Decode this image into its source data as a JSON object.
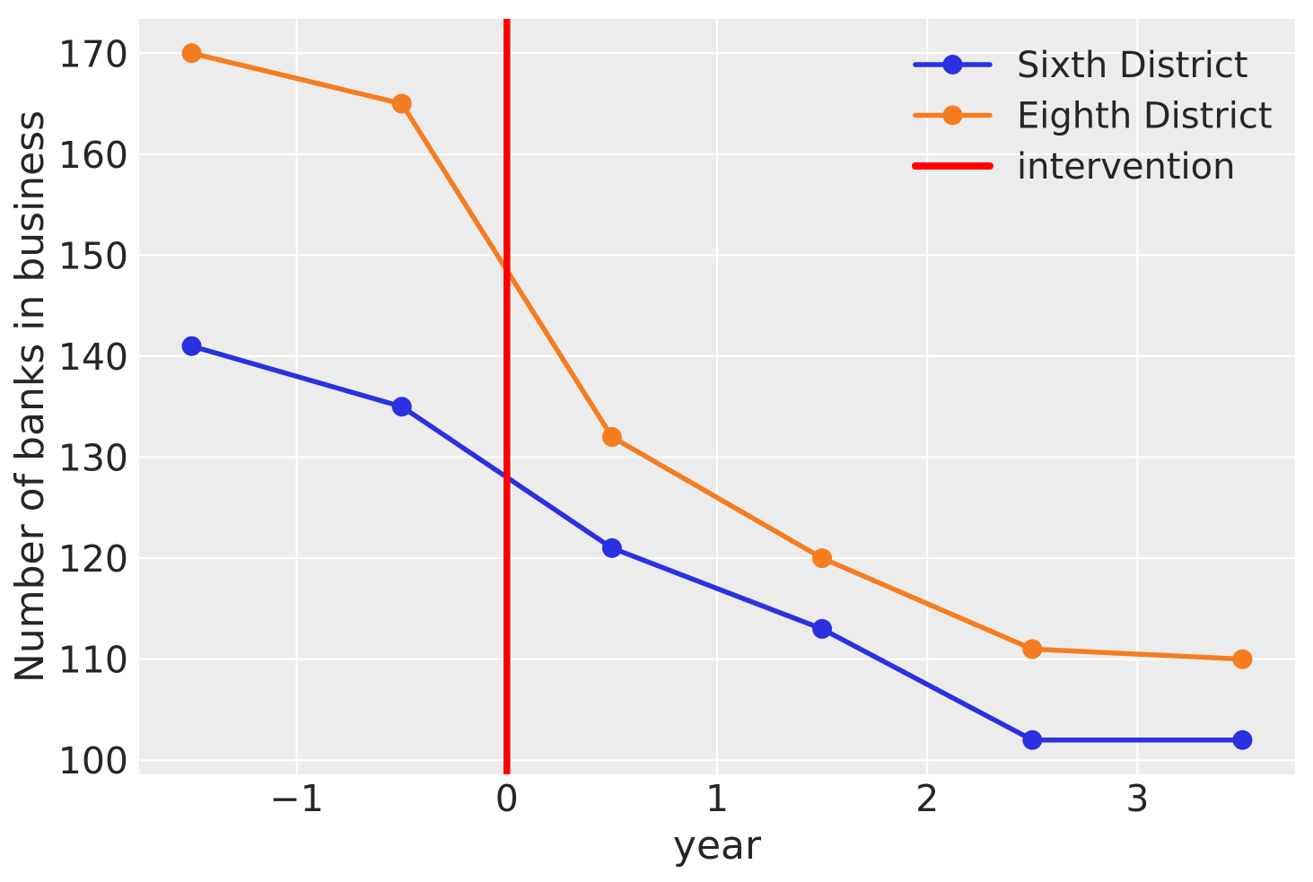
{
  "figure": {
    "background": "#ffffff",
    "plot_background": "#ececec",
    "grid_color": "#ffffff",
    "text_color": "#262626"
  },
  "chart_data": {
    "type": "line",
    "title": "",
    "xlabel": "year",
    "ylabel": "Number of banks in business",
    "xlim": [
      -1.75,
      3.75
    ],
    "ylim": [
      98.6,
      173.4
    ],
    "xticks": [
      -1,
      0,
      1,
      2,
      3
    ],
    "xtick_labels": [
      "−1",
      "0",
      "1",
      "2",
      "3"
    ],
    "yticks": [
      100,
      110,
      120,
      130,
      140,
      150,
      160,
      170
    ],
    "ytick_labels": [
      "100",
      "110",
      "120",
      "130",
      "140",
      "150",
      "160",
      "170"
    ],
    "grid": true,
    "x": [
      -1.5,
      -0.5,
      0.5,
      1.5,
      2.5,
      3.5
    ],
    "series": [
      {
        "name": "Sixth District",
        "color": "#2b30e1",
        "values": [
          141,
          135,
          121,
          113,
          102,
          102
        ]
      },
      {
        "name": "Eighth District",
        "color": "#f57c20",
        "values": [
          170,
          165,
          132,
          120,
          111,
          110
        ]
      }
    ],
    "intervention": {
      "label": "intervention",
      "x": 0,
      "color": "#ff0000"
    },
    "legend": {
      "position": "upper right",
      "entries": [
        "Sixth District",
        "Eighth District",
        "intervention"
      ]
    }
  }
}
